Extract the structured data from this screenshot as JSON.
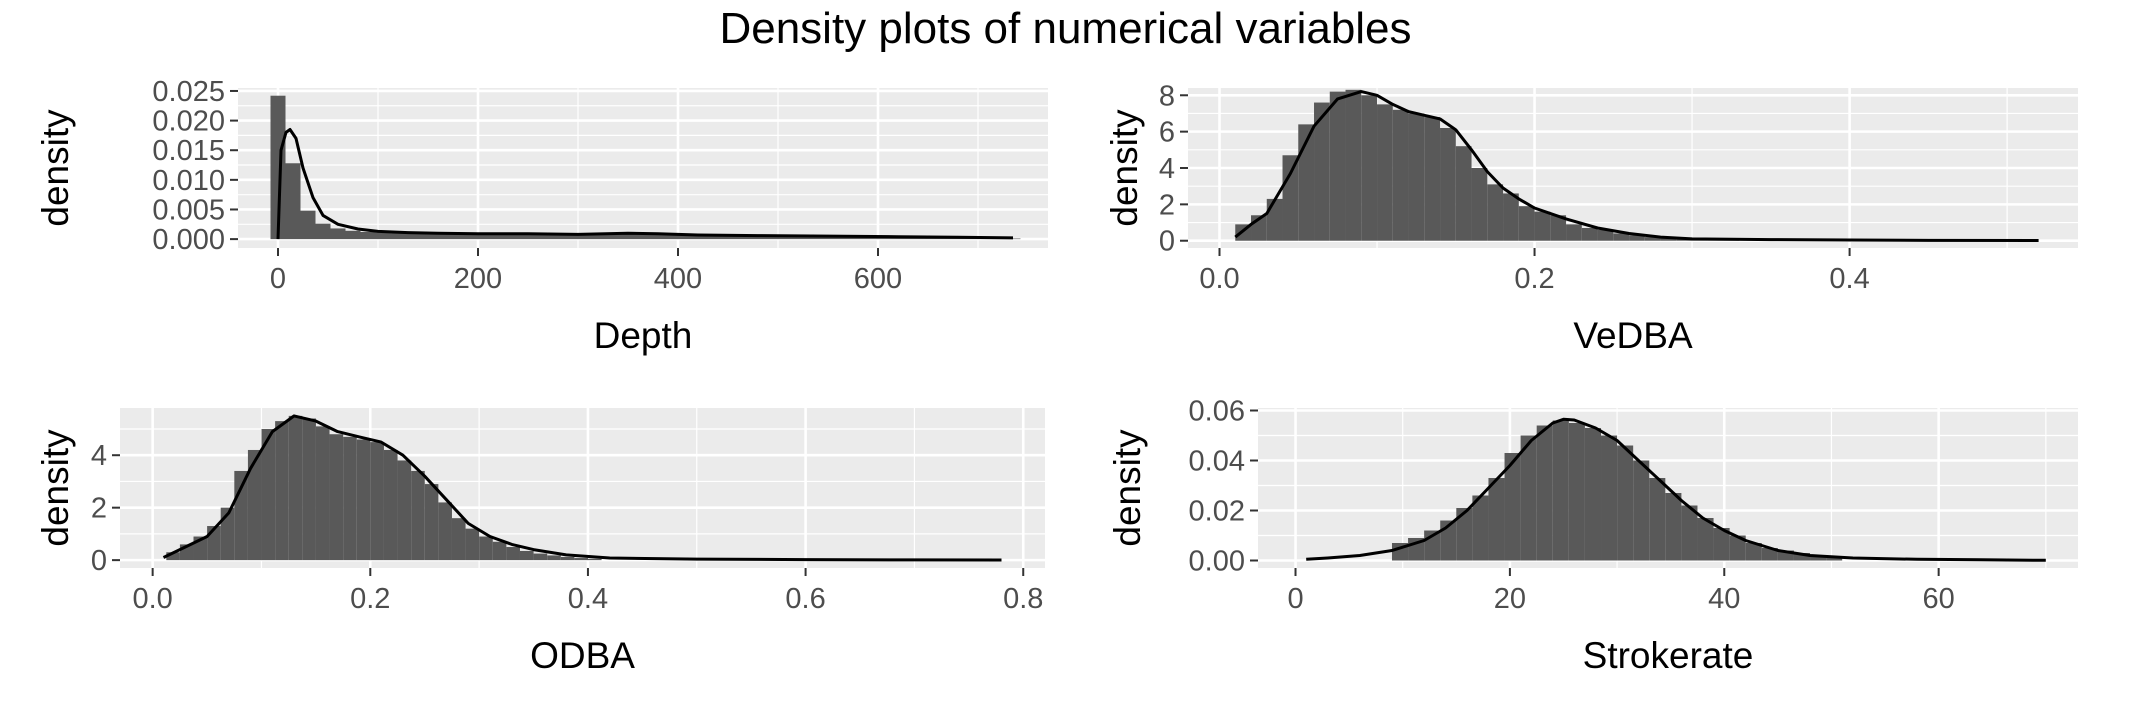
{
  "title": "Density plots of numerical variables",
  "colors": {
    "panel_bg": "#EBEBEB",
    "grid_major": "#FFFFFF",
    "bar_fill": "#595959",
    "density_line": "#000000",
    "tick_text": "#4D4D4D"
  },
  "chart_data": [
    {
      "type": "histogram_density",
      "xlabel": "Depth",
      "ylabel": "density",
      "xlim": [
        -40,
        770
      ],
      "ylim": [
        -0.0015,
        0.0255
      ],
      "xticks": [
        0,
        200,
        400,
        600
      ],
      "xticklabels": [
        "0",
        "200",
        "400",
        "600"
      ],
      "yticks": [
        0,
        0.005,
        0.01,
        0.015,
        0.02,
        0.025
      ],
      "yticklabels": [
        "0.000",
        "0.005",
        "0.010",
        "0.015",
        "0.020",
        "0.025"
      ],
      "binwidth": 15,
      "bin_centers": [
        0,
        15,
        30,
        45,
        60,
        75,
        90,
        105,
        120,
        135,
        150,
        165,
        180,
        195,
        210,
        225,
        240,
        255,
        270,
        285,
        300,
        315,
        330,
        345,
        360,
        375,
        390,
        405,
        420,
        435,
        450,
        465,
        480,
        495,
        510,
        525,
        540,
        555,
        570,
        585,
        600,
        615,
        630,
        645,
        660,
        675,
        690,
        705,
        720,
        735
      ],
      "bin_values": [
        0.0242,
        0.0128,
        0.0048,
        0.0026,
        0.0018,
        0.0014,
        0.0012,
        0.0011,
        0.001,
        0.001,
        0.001,
        0.001,
        0.0009,
        0.0009,
        0.001,
        0.0009,
        0.0009,
        0.0008,
        0.0008,
        0.0008,
        0.0008,
        0.0008,
        0.0009,
        0.0009,
        0.001,
        0.0009,
        0.0008,
        0.0008,
        0.0007,
        0.0007,
        0.0007,
        0.0006,
        0.0006,
        0.0006,
        0.0006,
        0.0005,
        0.0005,
        0.0005,
        0.0005,
        0.0005,
        0.0005,
        0.0004,
        0.0004,
        0.0004,
        0.0004,
        0.0003,
        0.0003,
        0.0003,
        0.0002,
        0.0001
      ],
      "density_x": [
        0,
        3,
        8,
        12,
        18,
        25,
        35,
        45,
        60,
        80,
        100,
        130,
        160,
        200,
        250,
        300,
        350,
        380,
        420,
        480,
        550,
        620,
        680,
        735
      ],
      "density_y": [
        0,
        0.015,
        0.018,
        0.0185,
        0.017,
        0.012,
        0.007,
        0.004,
        0.0025,
        0.0017,
        0.0013,
        0.0011,
        0.001,
        0.0009,
        0.0009,
        0.0008,
        0.001,
        0.0009,
        0.0007,
        0.0006,
        0.0005,
        0.0004,
        0.0003,
        0.0002
      ]
    },
    {
      "type": "histogram_density",
      "xlabel": "VeDBA",
      "ylabel": "density",
      "xlim": [
        -0.02,
        0.545
      ],
      "ylim": [
        -0.4,
        8.4
      ],
      "xticks": [
        0,
        0.2,
        0.4
      ],
      "xticklabels": [
        "0.0",
        "0.2",
        "0.4"
      ],
      "yticks": [
        0,
        2,
        4,
        6,
        8
      ],
      "yticklabels": [
        "0",
        "2",
        "4",
        "6",
        "8"
      ],
      "binwidth": 0.01,
      "bin_centers": [
        0.015,
        0.025,
        0.035,
        0.045,
        0.055,
        0.065,
        0.075,
        0.085,
        0.095,
        0.105,
        0.115,
        0.125,
        0.135,
        0.145,
        0.155,
        0.165,
        0.175,
        0.185,
        0.195,
        0.205,
        0.215,
        0.225,
        0.235,
        0.245,
        0.255,
        0.265,
        0.275,
        0.285,
        0.295,
        0.305,
        0.315,
        0.325
      ],
      "bin_values": [
        0.9,
        1.4,
        2.3,
        4.7,
        6.4,
        7.6,
        8.2,
        8.3,
        8.0,
        7.5,
        7.2,
        7.0,
        6.8,
        6.2,
        5.2,
        4.0,
        3.1,
        2.6,
        1.9,
        1.6,
        1.4,
        0.9,
        0.7,
        0.6,
        0.4,
        0.3,
        0.2,
        0.15,
        0.1,
        0.08,
        0.06,
        0.04
      ],
      "density_x": [
        0.01,
        0.02,
        0.03,
        0.045,
        0.06,
        0.075,
        0.09,
        0.1,
        0.11,
        0.12,
        0.13,
        0.14,
        0.15,
        0.16,
        0.17,
        0.18,
        0.19,
        0.2,
        0.22,
        0.24,
        0.26,
        0.28,
        0.3,
        0.35,
        0.4,
        0.45,
        0.52
      ],
      "density_y": [
        0.2,
        0.9,
        1.5,
        3.7,
        6.3,
        7.8,
        8.2,
        8.0,
        7.5,
        7.1,
        6.9,
        6.7,
        6.1,
        5.0,
        3.8,
        2.9,
        2.3,
        1.8,
        1.2,
        0.7,
        0.4,
        0.2,
        0.1,
        0.06,
        0.04,
        0.02,
        0.01
      ]
    },
    {
      "type": "histogram_density",
      "xlabel": "ODBA",
      "ylabel": "density",
      "xlim": [
        -0.03,
        0.82
      ],
      "ylim": [
        -0.3,
        5.8
      ],
      "xticks": [
        0,
        0.2,
        0.4,
        0.6,
        0.8
      ],
      "xticklabels": [
        "0.0",
        "0.2",
        "0.4",
        "0.6",
        "0.8"
      ],
      "yticks": [
        0,
        2,
        4
      ],
      "yticklabels": [
        "0",
        "2",
        "4"
      ],
      "binwidth": 0.0125,
      "bin_centers": [
        0.0188,
        0.0313,
        0.0438,
        0.0563,
        0.0688,
        0.0813,
        0.0938,
        0.1063,
        0.1188,
        0.1313,
        0.1438,
        0.1563,
        0.1688,
        0.1813,
        0.1938,
        0.2063,
        0.2188,
        0.2313,
        0.2438,
        0.2563,
        0.2688,
        0.2813,
        0.2938,
        0.3063,
        0.3188,
        0.3313,
        0.3438,
        0.3563,
        0.3688,
        0.3813,
        0.3938,
        0.4063
      ],
      "bin_values": [
        0.3,
        0.6,
        0.9,
        1.3,
        2.0,
        3.4,
        4.2,
        5.0,
        5.3,
        5.5,
        5.4,
        5.1,
        4.8,
        4.7,
        4.6,
        4.5,
        4.2,
        3.8,
        3.4,
        2.9,
        2.2,
        1.6,
        1.2,
        0.9,
        0.7,
        0.5,
        0.35,
        0.25,
        0.18,
        0.12,
        0.08,
        0.05
      ],
      "density_x": [
        0.01,
        0.03,
        0.05,
        0.07,
        0.09,
        0.11,
        0.13,
        0.15,
        0.17,
        0.19,
        0.21,
        0.23,
        0.25,
        0.27,
        0.29,
        0.31,
        0.33,
        0.35,
        0.38,
        0.42,
        0.5,
        0.6,
        0.7,
        0.78
      ],
      "density_y": [
        0.1,
        0.5,
        0.9,
        1.8,
        3.5,
        4.9,
        5.5,
        5.3,
        4.9,
        4.7,
        4.5,
        4.0,
        3.2,
        2.3,
        1.4,
        0.9,
        0.6,
        0.4,
        0.2,
        0.08,
        0.04,
        0.02,
        0.01,
        0.005
      ]
    },
    {
      "type": "histogram_density",
      "xlabel": "Strokerate",
      "ylabel": "density",
      "xlim": [
        -3.5,
        73
      ],
      "ylim": [
        -0.003,
        0.061
      ],
      "xticks": [
        0,
        20,
        40,
        60
      ],
      "xticklabels": [
        "0",
        "20",
        "40",
        "60"
      ],
      "yticks": [
        0,
        0.02,
        0.04,
        0.06
      ],
      "yticklabels": [
        "0.00",
        "0.02",
        "0.04",
        "0.06"
      ],
      "binwidth": 1.5,
      "bin_centers": [
        9.75,
        11.25,
        12.75,
        14.25,
        15.75,
        17.25,
        18.75,
        20.25,
        21.75,
        23.25,
        24.75,
        26.25,
        27.75,
        29.25,
        30.75,
        32.25,
        33.75,
        35.25,
        36.75,
        38.25,
        39.75,
        41.25,
        42.75,
        44.25,
        45.75,
        47.25,
        48.75,
        50.25
      ],
      "bin_values": [
        0.007,
        0.009,
        0.012,
        0.016,
        0.021,
        0.026,
        0.033,
        0.043,
        0.05,
        0.054,
        0.056,
        0.055,
        0.053,
        0.05,
        0.046,
        0.04,
        0.033,
        0.027,
        0.022,
        0.017,
        0.013,
        0.01,
        0.007,
        0.005,
        0.004,
        0.003,
        0.002,
        0.0015
      ],
      "density_x": [
        1,
        3,
        6,
        9,
        12,
        14,
        16,
        18,
        20,
        22,
        24,
        25,
        26,
        28,
        30,
        32,
        34,
        36,
        38,
        40,
        42,
        45,
        48,
        52,
        58,
        64,
        70
      ],
      "density_y": [
        0.0005,
        0.001,
        0.002,
        0.004,
        0.008,
        0.013,
        0.02,
        0.029,
        0.038,
        0.048,
        0.055,
        0.0565,
        0.0562,
        0.053,
        0.048,
        0.04,
        0.032,
        0.024,
        0.017,
        0.012,
        0.008,
        0.004,
        0.002,
        0.001,
        0.0005,
        0.0003,
        0.0001
      ]
    }
  ]
}
